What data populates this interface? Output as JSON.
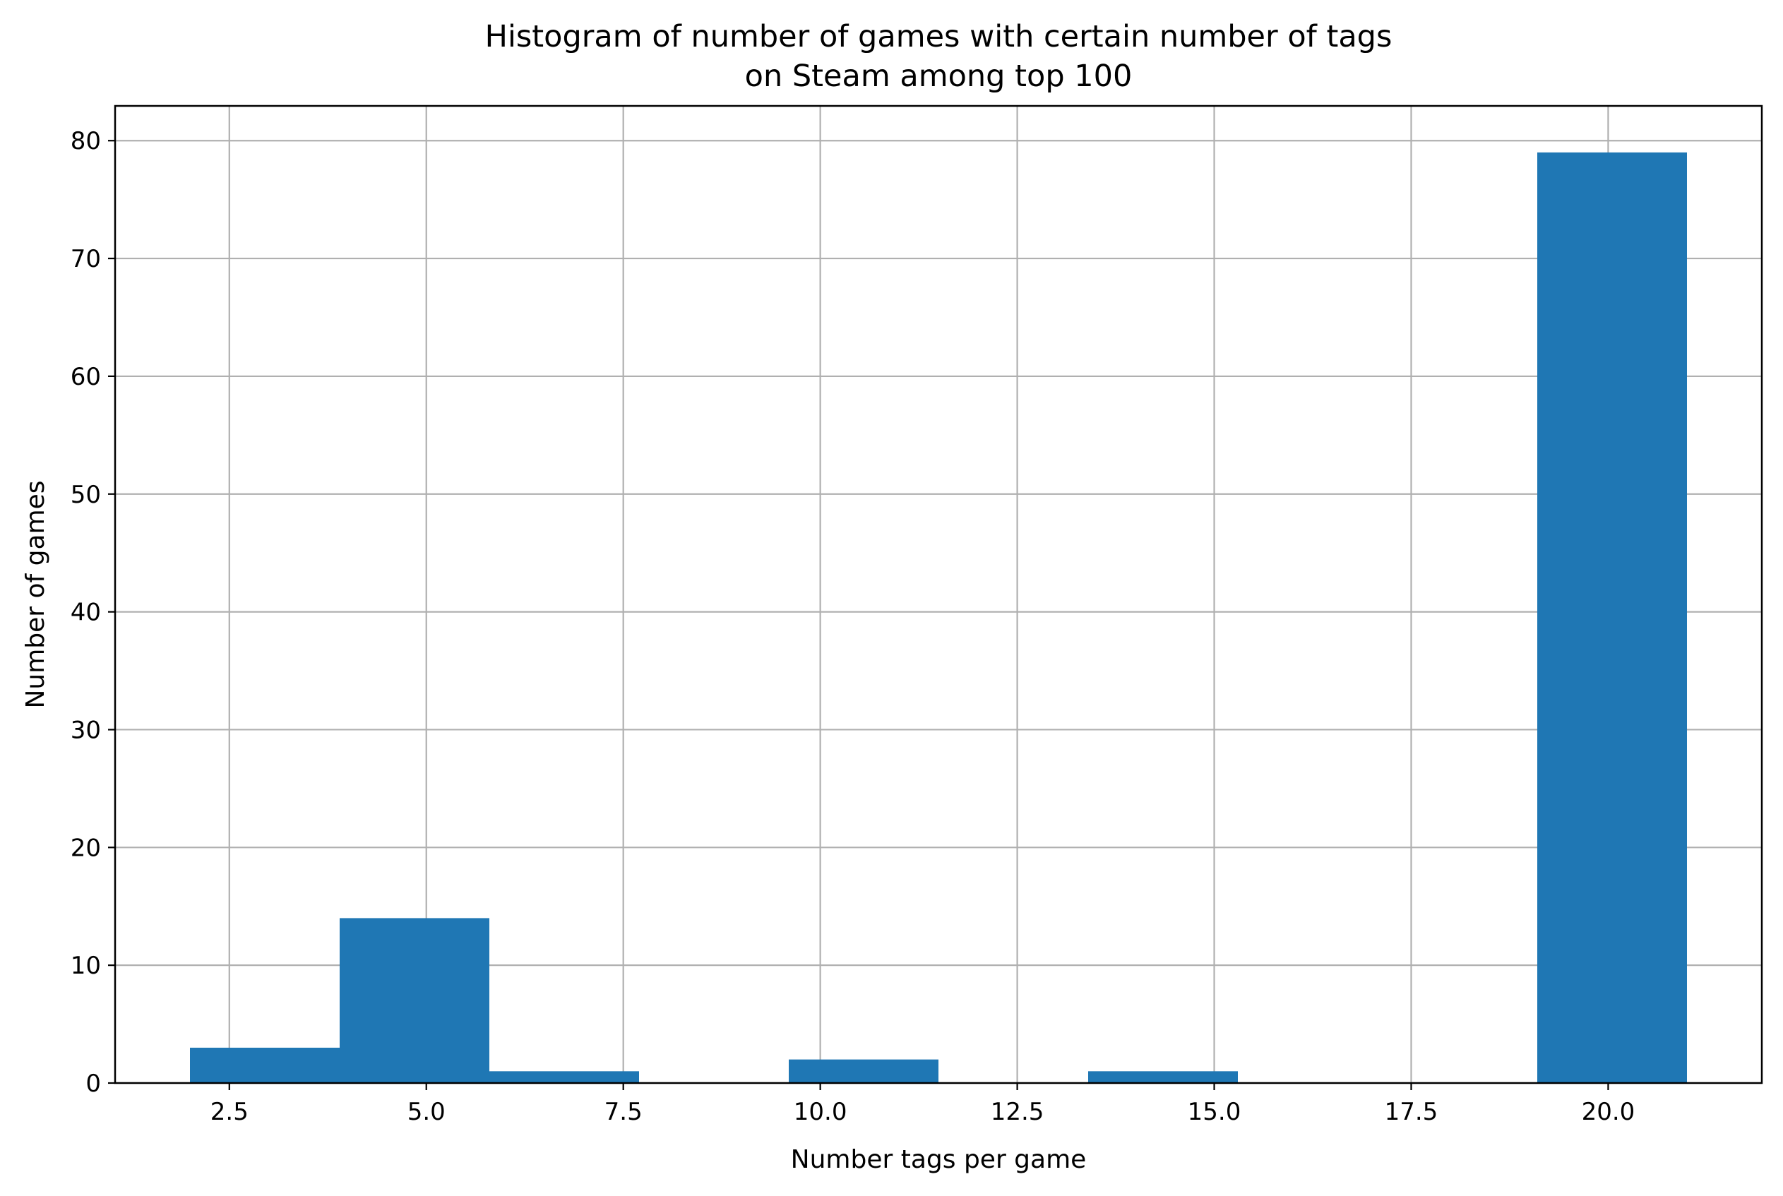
{
  "chart_data": {
    "type": "bar",
    "subtype": "histogram",
    "title": "Histogram of number of games with certain number of tags",
    "subtitle": "on Steam among top 100",
    "xlabel": "Number tags per game",
    "ylabel": "Number of games",
    "xlim": [
      1.05,
      21.95
    ],
    "ylim": [
      0,
      82.95
    ],
    "xticks": [
      2.5,
      5.0,
      7.5,
      10.0,
      12.5,
      15.0,
      17.5,
      20.0
    ],
    "xtick_labels": [
      "2.5",
      "5.0",
      "7.5",
      "10.0",
      "12.5",
      "15.0",
      "17.5",
      "20.0"
    ],
    "yticks": [
      0,
      10,
      20,
      30,
      40,
      50,
      60,
      70,
      80
    ],
    "ytick_labels": [
      "0",
      "10",
      "20",
      "30",
      "40",
      "50",
      "60",
      "70",
      "80"
    ],
    "bins": [
      {
        "x0": 2.0,
        "x1": 3.9,
        "count": 3
      },
      {
        "x0": 3.9,
        "x1": 5.8,
        "count": 14
      },
      {
        "x0": 5.8,
        "x1": 7.7,
        "count": 1
      },
      {
        "x0": 7.7,
        "x1": 9.6,
        "count": 0
      },
      {
        "x0": 9.6,
        "x1": 11.5,
        "count": 2
      },
      {
        "x0": 11.5,
        "x1": 13.4,
        "count": 0
      },
      {
        "x0": 13.4,
        "x1": 15.3,
        "count": 1
      },
      {
        "x0": 15.3,
        "x1": 17.2,
        "count": 0
      },
      {
        "x0": 17.2,
        "x1": 19.1,
        "count": 0
      },
      {
        "x0": 19.1,
        "x1": 21.0,
        "count": 79
      }
    ],
    "bar_color": "#1f77b4",
    "grid": true,
    "legend": "none"
  }
}
